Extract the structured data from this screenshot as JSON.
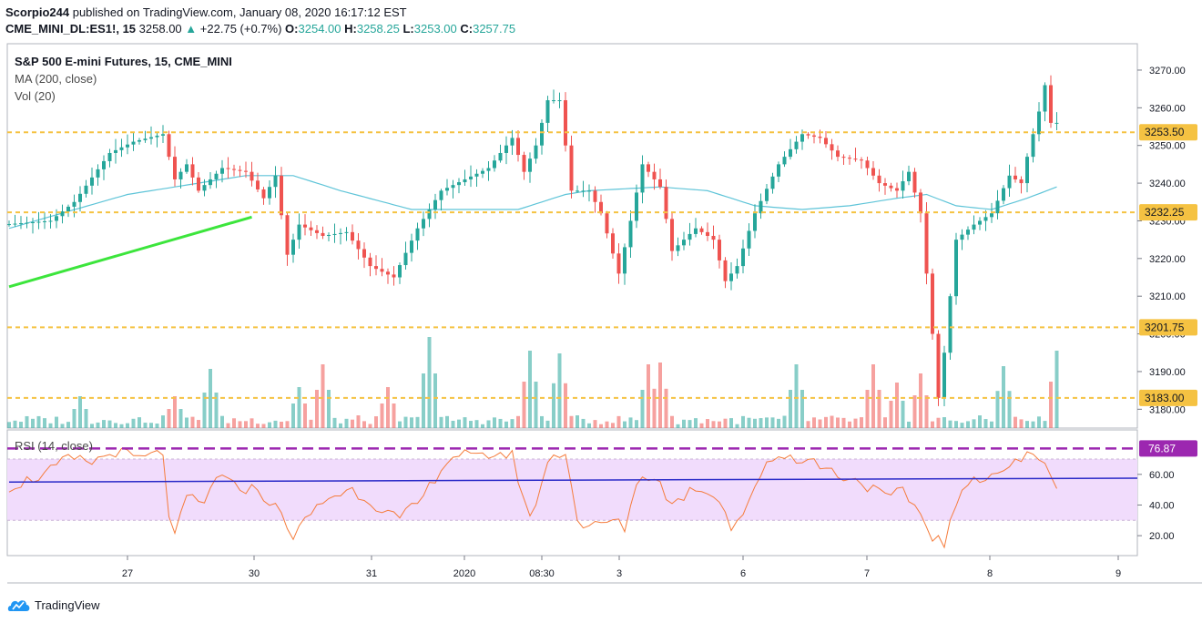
{
  "header": {
    "author": "Scorpio244",
    "published_text": "published on TradingView.com, January 08, 2020 16:17:12 EST",
    "symbol": "CME_MINI_DL:ES1!, 15",
    "last": "3258.00",
    "change_arrow": "▲",
    "change": "+22.75 (+0.7%)",
    "o_label": "O:",
    "o": "3254.00",
    "h_label": "H:",
    "h": "3258.25",
    "l_label": "L:",
    "l": "3253.00",
    "c_label": "C:",
    "c": "3257.75"
  },
  "legend": {
    "title": "S&P 500 E-mini Futures, 15, CME_MINI",
    "ma": "MA (200, close)",
    "vol": "Vol (20)",
    "rsi": "RSI (14, close)"
  },
  "brand": {
    "name": "TradingView"
  },
  "colors": {
    "up": "#26a69a",
    "down": "#ef5350",
    "ma": "#5ec4d8",
    "level": "#f5c242",
    "trend": "#3ce53c",
    "rsi": "#f57c3c",
    "rsi_ma": "#2a2ac8",
    "rsi_band": "#f1dcfc",
    "rsi_level": "#9c27b0"
  },
  "chart_data": [
    {
      "type": "candlestick",
      "title": "S&P 500 E-mini Futures, 15, CME_MINI",
      "x_ticks": [
        "27",
        "30",
        "31",
        "2020",
        "08:30",
        "3",
        "6",
        "7",
        "8",
        "9"
      ],
      "y_ticks": [
        "3180.00",
        "3190.00",
        "3200.00",
        "3210.00",
        "3220.00",
        "3230.00",
        "3240.00",
        "3250.00",
        "3260.00",
        "3270.00"
      ],
      "ylim": [
        3175,
        3277
      ],
      "price_path": [
        [
          0,
          3229
        ],
        [
          8,
          3230
        ],
        [
          12,
          3235
        ],
        [
          18,
          3248
        ],
        [
          22,
          3251
        ],
        [
          27,
          3253
        ],
        [
          29,
          3241
        ],
        [
          31,
          3245
        ],
        [
          33,
          3238
        ],
        [
          37,
          3244
        ],
        [
          41,
          3243
        ],
        [
          44,
          3236
        ],
        [
          46,
          3242
        ],
        [
          48,
          3221
        ],
        [
          50,
          3229
        ],
        [
          54,
          3226
        ],
        [
          58,
          3227
        ],
        [
          62,
          3218
        ],
        [
          66,
          3215
        ],
        [
          70,
          3228
        ],
        [
          74,
          3238
        ],
        [
          78,
          3241
        ],
        [
          82,
          3244
        ],
        [
          86,
          3252
        ],
        [
          88,
          3243
        ],
        [
          90,
          3250
        ],
        [
          92,
          3262
        ],
        [
          94,
          3262
        ],
        [
          96,
          3238
        ],
        [
          99,
          3238
        ],
        [
          101,
          3232
        ],
        [
          104,
          3216
        ],
        [
          106,
          3230
        ],
        [
          108,
          3245
        ],
        [
          111,
          3239
        ],
        [
          113,
          3222
        ],
        [
          115,
          3225
        ],
        [
          117,
          3228
        ],
        [
          120,
          3225
        ],
        [
          122,
          3214
        ],
        [
          124,
          3218
        ],
        [
          127,
          3232
        ],
        [
          131,
          3245
        ],
        [
          135,
          3253
        ],
        [
          138,
          3252
        ],
        [
          141,
          3247
        ],
        [
          145,
          3246
        ],
        [
          148,
          3240
        ],
        [
          151,
          3238
        ],
        [
          153,
          3243
        ],
        [
          155,
          3232
        ],
        [
          157,
          3200
        ],
        [
          158,
          3183
        ],
        [
          159,
          3195
        ],
        [
          161,
          3225
        ],
        [
          164,
          3229
        ],
        [
          167,
          3232
        ],
        [
          170,
          3242
        ],
        [
          172,
          3240
        ],
        [
          173,
          3247
        ],
        [
          175,
          3259
        ],
        [
          176,
          3266
        ],
        [
          177,
          3256
        ]
      ],
      "ma200_path": [
        [
          0,
          3228
        ],
        [
          20,
          3237
        ],
        [
          40,
          3242
        ],
        [
          48,
          3242
        ],
        [
          56,
          3238
        ],
        [
          68,
          3233
        ],
        [
          78,
          3233
        ],
        [
          86,
          3233
        ],
        [
          94,
          3237
        ],
        [
          98,
          3238
        ],
        [
          110,
          3239
        ],
        [
          118,
          3238
        ],
        [
          126,
          3234
        ],
        [
          134,
          3233
        ],
        [
          142,
          3234
        ],
        [
          150,
          3236
        ],
        [
          155,
          3237
        ],
        [
          160,
          3234
        ],
        [
          166,
          3233
        ],
        [
          172,
          3236
        ],
        [
          177,
          3239
        ]
      ],
      "levels": [
        {
          "label": "3253.50",
          "value": 3253.5
        },
        {
          "label": "3232.25",
          "value": 3232.25
        },
        {
          "label": "3201.75",
          "value": 3201.75
        },
        {
          "label": "3183.00",
          "value": 3183.0
        }
      ],
      "trendline": [
        [
          0,
          3212.5
        ],
        [
          41,
          3231
        ]
      ],
      "volume_spikes": [
        [
          12,
          0.35
        ],
        [
          28,
          0.35
        ],
        [
          34,
          0.65
        ],
        [
          49,
          0.45
        ],
        [
          53,
          0.7
        ],
        [
          64,
          0.45
        ],
        [
          71,
          1.0
        ],
        [
          88,
          0.85
        ],
        [
          93,
          0.82
        ],
        [
          108,
          0.7
        ],
        [
          110,
          0.72
        ],
        [
          133,
          0.7
        ],
        [
          146,
          0.7
        ],
        [
          150,
          0.5
        ],
        [
          154,
          0.6
        ],
        [
          168,
          0.68
        ],
        [
          177,
          0.85
        ]
      ]
    },
    {
      "type": "line",
      "title": "RSI (14, close)",
      "y_ticks": [
        "20.00",
        "40.00",
        "60.00"
      ],
      "ylim": [
        7,
        89
      ],
      "band": [
        30,
        70
      ],
      "level_label": "76.87",
      "level_value": 76.87,
      "rsi_ma_path": [
        [
          0,
          55
        ],
        [
          177,
          57.5
        ]
      ],
      "rsi_path": [
        [
          0,
          52
        ],
        [
          6,
          60
        ],
        [
          10,
          70
        ],
        [
          14,
          68
        ],
        [
          18,
          75
        ],
        [
          22,
          70
        ],
        [
          26,
          74
        ],
        [
          27,
          35
        ],
        [
          28,
          18
        ],
        [
          30,
          45
        ],
        [
          33,
          40
        ],
        [
          35,
          60
        ],
        [
          38,
          52
        ],
        [
          42,
          50
        ],
        [
          45,
          38
        ],
        [
          47,
          28
        ],
        [
          48,
          18
        ],
        [
          51,
          35
        ],
        [
          54,
          45
        ],
        [
          58,
          50
        ],
        [
          62,
          40
        ],
        [
          66,
          30
        ],
        [
          70,
          45
        ],
        [
          73,
          65
        ],
        [
          76,
          74
        ],
        [
          79,
          70
        ],
        [
          82,
          74
        ],
        [
          85,
          72
        ],
        [
          88,
          30
        ],
        [
          91,
          68
        ],
        [
          94,
          76
        ],
        [
          96,
          30
        ],
        [
          98,
          25
        ],
        [
          102,
          30
        ],
        [
          104,
          25
        ],
        [
          106,
          55
        ],
        [
          109,
          60
        ],
        [
          112,
          40
        ],
        [
          116,
          52
        ],
        [
          120,
          45
        ],
        [
          122,
          25
        ],
        [
          125,
          40
        ],
        [
          128,
          70
        ],
        [
          132,
          72
        ],
        [
          136,
          68
        ],
        [
          140,
          60
        ],
        [
          144,
          55
        ],
        [
          148,
          45
        ],
        [
          151,
          48
        ],
        [
          153,
          40
        ],
        [
          156,
          20
        ],
        [
          158,
          15
        ],
        [
          160,
          40
        ],
        [
          163,
          58
        ],
        [
          166,
          60
        ],
        [
          169,
          65
        ],
        [
          172,
          72
        ],
        [
          175,
          70
        ],
        [
          176,
          60
        ],
        [
          177,
          48
        ]
      ]
    }
  ]
}
